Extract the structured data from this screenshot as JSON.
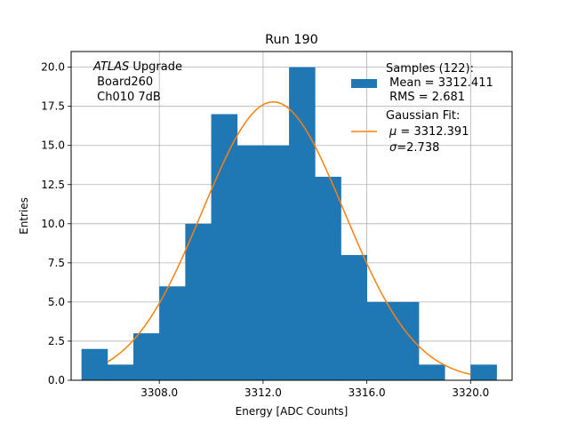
{
  "chart_data": {
    "type": "bar",
    "title": "Run 190",
    "xlabel": "Energy [ADC Counts]",
    "ylabel": "Entries",
    "xlim": [
      3304.6,
      3321.6
    ],
    "ylim": [
      0,
      21
    ],
    "grid": true,
    "x_ticks": [
      3308.0,
      3312.0,
      3316.0,
      3320.0
    ],
    "x_tick_labels": [
      "3308.0",
      "3312.0",
      "3316.0",
      "3320.0"
    ],
    "y_ticks": [
      0.0,
      2.5,
      5.0,
      7.5,
      10.0,
      12.5,
      15.0,
      17.5,
      20.0
    ],
    "y_tick_labels": [
      "0.0",
      "2.5",
      "5.0",
      "7.5",
      "10.0",
      "12.5",
      "15.0",
      "17.5",
      "20.0"
    ],
    "histogram": {
      "name": "Samples (122):",
      "bin_edges": [
        3305.0,
        3306.0,
        3307.0,
        3308.0,
        3309.0,
        3310.0,
        3311.0,
        3312.0,
        3313.0,
        3314.0,
        3315.0,
        3316.0,
        3317.0,
        3318.0,
        3319.0,
        3320.0,
        3321.0
      ],
      "counts": [
        2,
        1,
        3,
        6,
        10,
        17,
        15,
        15,
        20,
        13,
        8,
        5,
        5,
        1,
        0,
        1
      ],
      "color": "#1f77b4"
    },
    "fit": {
      "name": "Gaussian Fit:",
      "mu": 3312.391,
      "sigma": 2.738,
      "amplitude": 17.78,
      "x_range": [
        3306.0,
        3320.0
      ],
      "color": "#ff7f0e"
    },
    "annotation": {
      "italic": "ATLAS",
      "line1_rest": " Upgrade",
      "line2": " Board260",
      "line3": " Ch010 7dB"
    },
    "legend": {
      "location": "top-right",
      "samples_title": "Samples (122):",
      "samples_mean": " Mean = 3312.411",
      "samples_rms": " RMS = 2.681",
      "fit_title": "Gaussian Fit:",
      "fit_mu_symbol": "μ",
      "fit_mu_text": " = 3312.391",
      "fit_sigma_symbol": "σ",
      "fit_sigma_text": "=2.738"
    }
  }
}
